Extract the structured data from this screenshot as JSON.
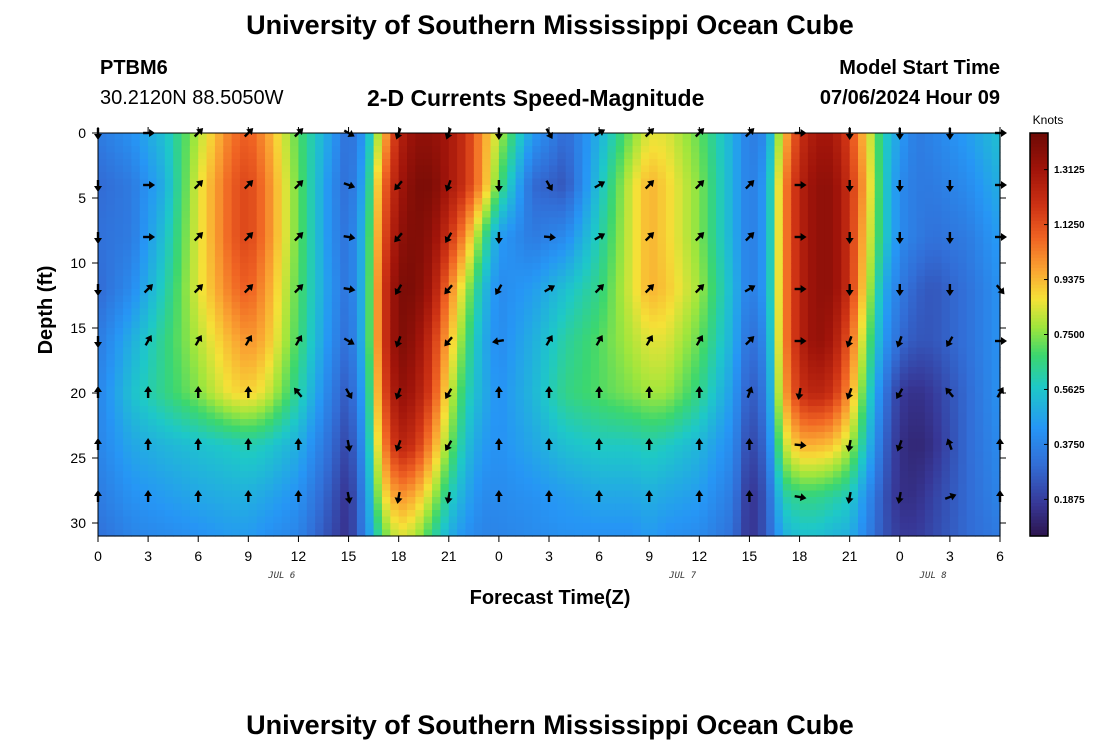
{
  "page": {
    "title": "University of Southern Mississippi Ocean Cube",
    "bottom_title": "University of Southern Mississippi Ocean Cube",
    "station_id": "PTBM6",
    "station_coords": "30.2120N  88.5050W",
    "subtitle": "2-D Currents Speed-Magnitude",
    "start_label": "Model Start Time",
    "start_value": "07/06/2024 Hour 09"
  },
  "chart_data": {
    "type": "heatmap",
    "title": "2-D Currents Speed-Magnitude",
    "xlabel": "Forecast Time(Z)",
    "ylabel": "Depth (ft)",
    "x_unit": "hours since 2024-07-06 00Z",
    "xlim": [
      0,
      54
    ],
    "ylim": [
      31,
      0
    ],
    "x_ticks": [
      0,
      3,
      6,
      9,
      12,
      15,
      18,
      21,
      24,
      27,
      30,
      33,
      36,
      39,
      42,
      45,
      48,
      51,
      54
    ],
    "x_tick_labels": [
      "0",
      "3",
      "6",
      "9",
      "12",
      "15",
      "18",
      "21",
      "0",
      "3",
      "6",
      "9",
      "12",
      "15",
      "18",
      "21",
      "0",
      "3",
      "6"
    ],
    "y_ticks": [
      0,
      5,
      10,
      15,
      20,
      25,
      30
    ],
    "y_tick_labels": [
      "0",
      "5",
      "10",
      "15",
      "20",
      "25",
      "30"
    ],
    "date_labels": [
      {
        "x": 11,
        "label": "JUL 6"
      },
      {
        "x": 35,
        "label": "JUL 7"
      },
      {
        "x": 50,
        "label": "JUL 8"
      }
    ],
    "colorbar": {
      "unit": "Knots",
      "min": 0.0625,
      "max": 1.4375,
      "tick_values": [
        0.1875,
        0.375,
        0.5625,
        0.75,
        0.9375,
        1.125,
        1.3125
      ],
      "tick_labels": [
        "0.1875",
        "0.3750",
        "0.5625",
        "0.7500",
        "0.9375",
        "1.1250",
        "1.3125"
      ]
    },
    "speed_grid": {
      "note": "estimated current speed (knots); rows = depths, cols = forecast hours",
      "depths": [
        0,
        4,
        8,
        12,
        16,
        20,
        24,
        28,
        31
      ],
      "times": [
        0,
        2,
        4,
        6,
        8,
        9,
        10,
        12,
        14,
        15,
        16,
        17,
        18,
        19,
        20,
        21,
        22,
        23,
        24,
        26,
        28,
        30,
        32,
        33,
        34,
        36,
        38,
        39,
        40,
        41,
        42,
        43,
        44,
        45,
        46,
        47,
        48,
        49,
        50,
        52,
        54
      ],
      "values": [
        [
          0.35,
          0.42,
          0.55,
          0.8,
          1.05,
          1.1,
          1.0,
          0.7,
          0.45,
          0.3,
          0.45,
          0.9,
          1.25,
          1.35,
          1.35,
          1.3,
          1.2,
          1.0,
          0.8,
          0.45,
          0.3,
          0.5,
          0.75,
          0.85,
          0.85,
          0.72,
          0.5,
          0.35,
          0.4,
          0.9,
          1.2,
          1.3,
          1.3,
          1.15,
          0.9,
          0.6,
          0.45,
          0.35,
          0.38,
          0.45,
          0.55
        ],
        [
          0.3,
          0.35,
          0.5,
          0.85,
          1.1,
          1.15,
          1.05,
          0.72,
          0.4,
          0.3,
          0.5,
          1.05,
          1.3,
          1.4,
          1.4,
          1.3,
          1.2,
          1.0,
          0.7,
          0.3,
          0.25,
          0.55,
          0.85,
          0.95,
          0.9,
          0.75,
          0.5,
          0.35,
          0.45,
          1.0,
          1.25,
          1.35,
          1.35,
          1.2,
          0.95,
          0.6,
          0.4,
          0.35,
          0.35,
          0.4,
          0.5
        ],
        [
          0.32,
          0.35,
          0.55,
          0.85,
          1.1,
          1.15,
          1.05,
          0.72,
          0.4,
          0.32,
          0.55,
          1.1,
          1.35,
          1.4,
          1.35,
          1.2,
          1.0,
          0.7,
          0.45,
          0.35,
          0.4,
          0.6,
          0.85,
          0.95,
          0.9,
          0.75,
          0.5,
          0.35,
          0.45,
          1.0,
          1.25,
          1.35,
          1.35,
          1.2,
          0.9,
          0.6,
          0.4,
          0.35,
          0.32,
          0.35,
          0.45
        ],
        [
          0.3,
          0.4,
          0.6,
          0.85,
          1.05,
          1.1,
          1.0,
          0.7,
          0.42,
          0.32,
          0.55,
          1.15,
          1.4,
          1.4,
          1.3,
          1.05,
          0.8,
          0.55,
          0.4,
          0.45,
          0.55,
          0.65,
          0.85,
          0.95,
          0.92,
          0.78,
          0.52,
          0.35,
          0.45,
          1.0,
          1.25,
          1.35,
          1.35,
          1.2,
          0.85,
          0.5,
          0.35,
          0.28,
          0.25,
          0.32,
          0.42
        ],
        [
          0.35,
          0.5,
          0.65,
          0.8,
          0.95,
          1.0,
          0.95,
          0.68,
          0.4,
          0.3,
          0.55,
          1.15,
          1.4,
          1.35,
          1.2,
          0.95,
          0.7,
          0.5,
          0.4,
          0.5,
          0.62,
          0.7,
          0.8,
          0.85,
          0.85,
          0.72,
          0.5,
          0.3,
          0.4,
          1.0,
          1.25,
          1.35,
          1.3,
          1.1,
          0.75,
          0.45,
          0.3,
          0.25,
          0.25,
          0.32,
          0.42
        ],
        [
          0.38,
          0.55,
          0.65,
          0.75,
          0.88,
          0.9,
          0.85,
          0.62,
          0.35,
          0.25,
          0.5,
          1.1,
          1.35,
          1.3,
          1.15,
          0.85,
          0.62,
          0.5,
          0.42,
          0.52,
          0.65,
          0.7,
          0.75,
          0.78,
          0.78,
          0.65,
          0.45,
          0.25,
          0.35,
          0.95,
          1.2,
          1.25,
          1.2,
          1.0,
          0.65,
          0.35,
          0.18,
          0.15,
          0.18,
          0.3,
          0.42
        ],
        [
          0.38,
          0.48,
          0.52,
          0.55,
          0.58,
          0.6,
          0.58,
          0.5,
          0.3,
          0.2,
          0.45,
          1.0,
          1.25,
          1.2,
          1.0,
          0.75,
          0.55,
          0.45,
          0.42,
          0.48,
          0.55,
          0.58,
          0.58,
          0.6,
          0.58,
          0.52,
          0.4,
          0.2,
          0.3,
          0.8,
          0.95,
          0.95,
          0.92,
          0.8,
          0.55,
          0.3,
          0.15,
          0.12,
          0.15,
          0.3,
          0.4
        ],
        [
          0.35,
          0.42,
          0.45,
          0.48,
          0.5,
          0.5,
          0.48,
          0.42,
          0.25,
          0.15,
          0.4,
          0.85,
          1.0,
          0.95,
          0.8,
          0.6,
          0.48,
          0.4,
          0.4,
          0.42,
          0.45,
          0.48,
          0.48,
          0.5,
          0.48,
          0.45,
          0.35,
          0.15,
          0.25,
          0.6,
          0.65,
          0.65,
          0.62,
          0.58,
          0.42,
          0.25,
          0.15,
          0.15,
          0.2,
          0.3,
          0.38
        ],
        [
          0.32,
          0.38,
          0.4,
          0.42,
          0.45,
          0.45,
          0.42,
          0.38,
          0.22,
          0.15,
          0.38,
          0.7,
          0.85,
          0.8,
          0.65,
          0.5,
          0.42,
          0.38,
          0.38,
          0.4,
          0.42,
          0.42,
          0.42,
          0.45,
          0.42,
          0.4,
          0.32,
          0.15,
          0.25,
          0.5,
          0.55,
          0.55,
          0.52,
          0.5,
          0.38,
          0.25,
          0.18,
          0.18,
          0.22,
          0.3,
          0.35
        ]
      ]
    },
    "current_vectors": {
      "note": "direction arrows, bearing in degrees clockwise from north (0 = up/north)",
      "times": [
        0,
        3,
        6,
        9,
        12,
        15,
        18,
        21,
        24,
        27,
        30,
        33,
        36,
        39,
        42,
        45,
        48,
        51,
        54
      ],
      "depths": [
        0,
        4,
        8,
        12,
        16,
        20,
        24,
        28
      ],
      "bearings": [
        [
          180,
          90,
          45,
          45,
          45,
          120,
          200,
          200,
          180,
          150,
          60,
          45,
          45,
          45,
          90,
          180,
          180,
          180,
          90
        ],
        [
          180,
          90,
          45,
          45,
          45,
          110,
          220,
          200,
          180,
          150,
          60,
          45,
          45,
          45,
          90,
          180,
          180,
          180,
          90
        ],
        [
          180,
          90,
          45,
          45,
          45,
          100,
          220,
          210,
          180,
          95,
          60,
          45,
          45,
          45,
          90,
          180,
          180,
          180,
          90
        ],
        [
          180,
          45,
          45,
          45,
          45,
          100,
          210,
          220,
          210,
          60,
          45,
          45,
          45,
          60,
          90,
          180,
          180,
          180,
          140
        ],
        [
          180,
          30,
          30,
          30,
          30,
          120,
          200,
          220,
          260,
          30,
          30,
          30,
          30,
          45,
          90,
          200,
          200,
          210,
          90
        ],
        [
          0,
          0,
          0,
          0,
          320,
          150,
          200,
          210,
          0,
          0,
          0,
          0,
          0,
          20,
          190,
          200,
          210,
          320,
          30
        ],
        [
          0,
          0,
          0,
          0,
          0,
          170,
          200,
          210,
          0,
          0,
          0,
          0,
          0,
          0,
          95,
          190,
          200,
          340,
          0
        ],
        [
          0,
          0,
          0,
          0,
          0,
          170,
          190,
          190,
          0,
          0,
          0,
          0,
          0,
          0,
          100,
          190,
          190,
          70,
          0
        ]
      ]
    }
  }
}
